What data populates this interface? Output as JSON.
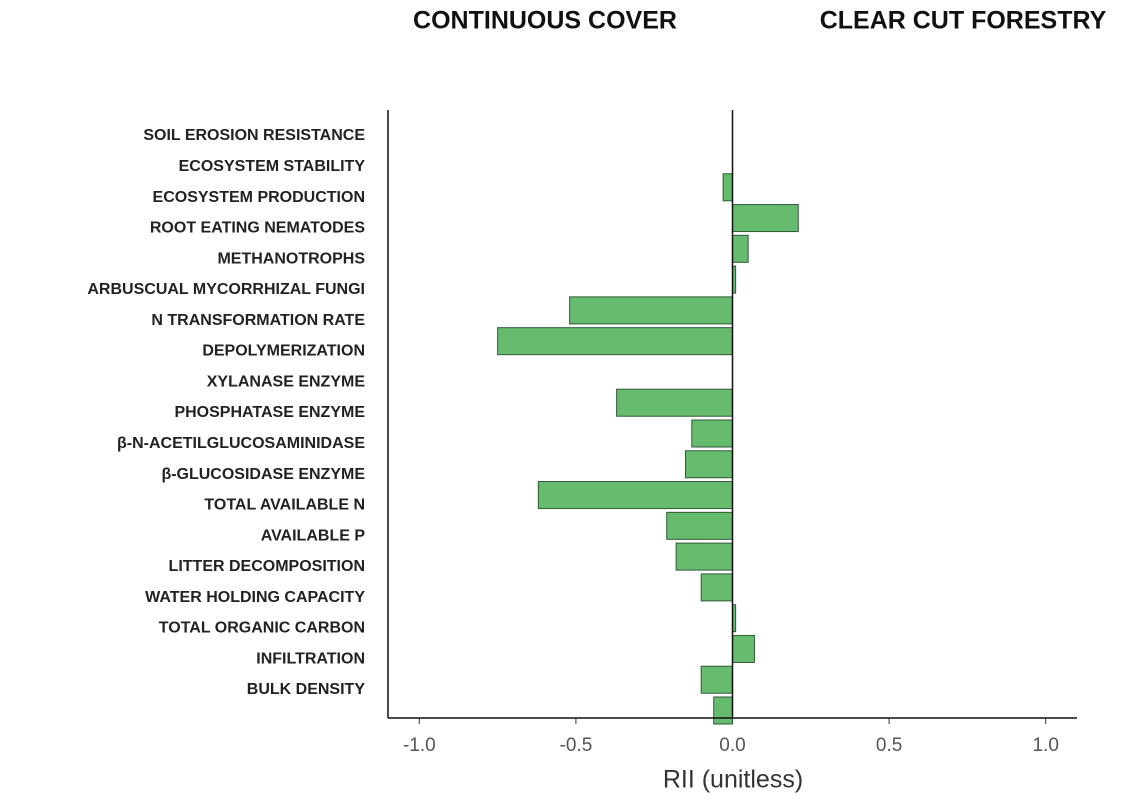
{
  "chart_data": {
    "type": "bar",
    "orientation": "horizontal",
    "annotations": [
      "CONTINUOUS COVER",
      "CLEAR CUT FORESTRY"
    ],
    "x_label": "RII (unitless)",
    "categories": [
      "SOIL EROSION RESISTANCE",
      "ECOSYSTEM STABILITY",
      "ECOSYSTEM PRODUCTION",
      "ROOT EATING NEMATODES",
      "METHANOTROPHS",
      "ARBUSCUAL MYCORRHIZAL FUNGI",
      "N TRANSFORMATION RATE",
      "DEPOLYMERIZATION",
      "XYLANASE ENZYME",
      "PHOSPHATASE ENZYME",
      "β-N-ACETILGLUCOSAMINIDASE",
      "β-GLUCOSIDASE ENZYME",
      "TOTAL AVAILABLE N",
      "AVAILABLE P",
      "LITTER DECOMPOSITION",
      "WATER HOLDING CAPACITY",
      "TOTAL ORGANIC CARBON",
      "INFILTRATION",
      "BULK DENSITY"
    ],
    "values": [
      0,
      -0.03,
      0.21,
      0.05,
      0.01,
      -0.52,
      -0.75,
      0,
      -0.37,
      -0.13,
      -0.15,
      -0.62,
      -0.21,
      -0.18,
      -0.1,
      0.01,
      0.07,
      -0.1,
      -0.06
    ],
    "color": "#66bb6e",
    "xlim": [
      -1.1,
      1.1
    ],
    "xticks": [
      {
        "value": -1,
        "label": "-1.0"
      },
      {
        "value": -0.5,
        "label": "-0.5"
      },
      {
        "value": 0,
        "label": "0.0"
      },
      {
        "value": 0.5,
        "label": "0.5"
      },
      {
        "value": 1,
        "label": "1.0"
      }
    ]
  }
}
